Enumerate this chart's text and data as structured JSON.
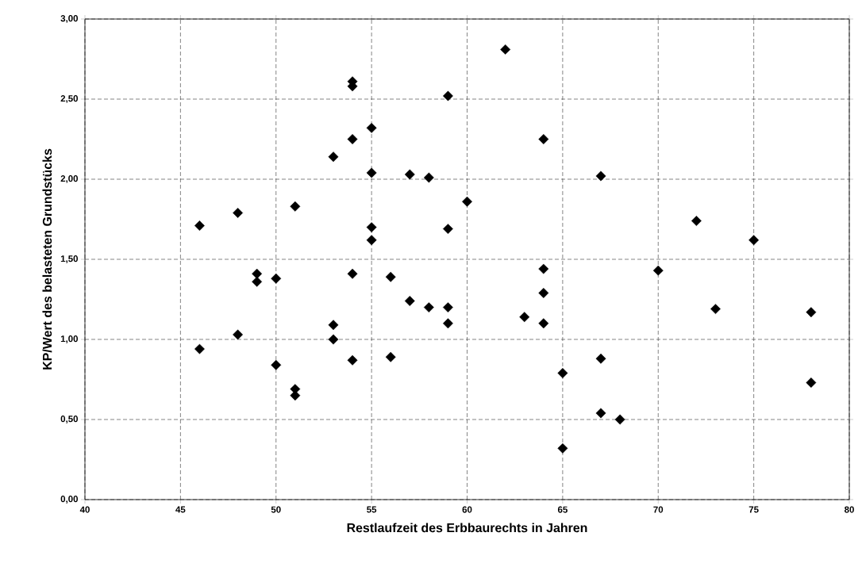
{
  "chart_data": {
    "type": "scatter",
    "xlabel": "Restlaufzeit des Erbbaurechts in Jahren",
    "ylabel": "KP/Wert des belasteten Grundstücks",
    "series": [
      {
        "color": "#000000",
        "x": [
          46,
          46,
          48,
          48,
          49,
          49,
          50,
          50,
          51,
          51,
          51,
          53,
          53,
          53,
          54,
          54,
          54,
          54,
          54,
          55,
          55,
          55,
          55,
          56,
          56,
          57,
          57,
          58,
          58,
          59,
          59,
          59,
          59,
          60,
          62,
          63,
          64,
          64,
          64,
          64,
          65,
          65,
          67,
          67,
          67,
          68,
          70,
          72,
          73,
          75,
          78,
          78
        ],
        "values": [
          1.71,
          0.94,
          1.79,
          1.03,
          1.41,
          1.36,
          1.38,
          0.84,
          1.83,
          0.69,
          0.65,
          2.14,
          1.09,
          1.0,
          2.61,
          2.58,
          2.25,
          1.41,
          0.87,
          2.32,
          2.04,
          1.7,
          1.62,
          1.39,
          0.89,
          2.03,
          1.24,
          2.01,
          1.2,
          2.52,
          1.69,
          1.2,
          1.1,
          1.86,
          2.81,
          1.14,
          2.25,
          1.44,
          1.29,
          1.1,
          0.79,
          0.32,
          2.02,
          0.88,
          0.54,
          0.5,
          1.43,
          1.74,
          1.19,
          1.62,
          1.17,
          0.73
        ]
      }
    ],
    "xlim": [
      40,
      80
    ],
    "xticks": [
      40,
      45,
      50,
      55,
      60,
      65,
      70,
      75,
      80
    ],
    "ylim": [
      0,
      3
    ],
    "yticks": [
      {
        "value": 0,
        "label": "0,00"
      },
      {
        "value": 0.5,
        "label": "0,50"
      },
      {
        "value": 1,
        "label": "1,00"
      },
      {
        "value": 1.5,
        "label": "1,50"
      },
      {
        "value": 2,
        "label": "2,00"
      },
      {
        "value": 2.5,
        "label": "2,50"
      },
      {
        "value": 3,
        "label": "3,00"
      }
    ],
    "grid": true,
    "marker": "diamond"
  }
}
